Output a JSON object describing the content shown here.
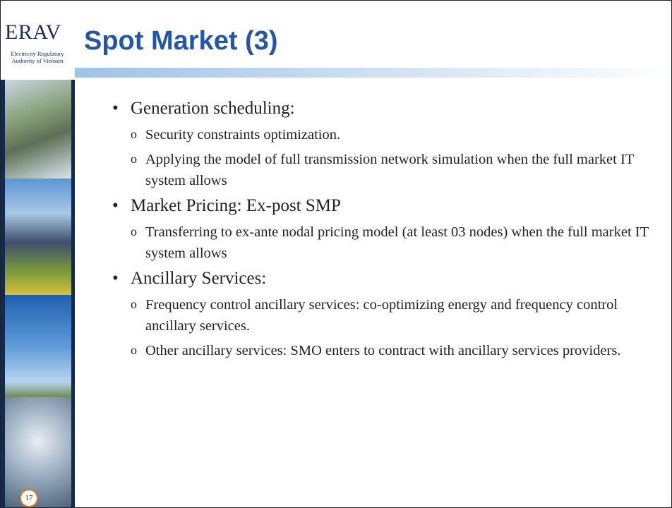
{
  "logo": {
    "name": "ERAV",
    "subtitle": [
      "Electricity Regulatory",
      "Authority of Vietnam"
    ]
  },
  "title": "Spot Market (3)",
  "slide_number": "17",
  "bullets": [
    {
      "text": "Generation scheduling:",
      "items": [
        "Security constraints optimization.",
        "Applying the model of full transmission network simulation when the full market IT system allows"
      ]
    },
    {
      "text": "Market Pricing: Ex-post SMP",
      "items": [
        "Transferring to ex-ante nodal pricing model (at least 03 nodes) when the full market IT system allows"
      ]
    },
    {
      "text": "Ancillary Services:",
      "items": [
        "Frequency control ancillary services: co-optimizing energy and frequency control ancillary services.",
        "Other ancillary services: SMO enters to contract with ancillary services providers."
      ]
    }
  ]
}
